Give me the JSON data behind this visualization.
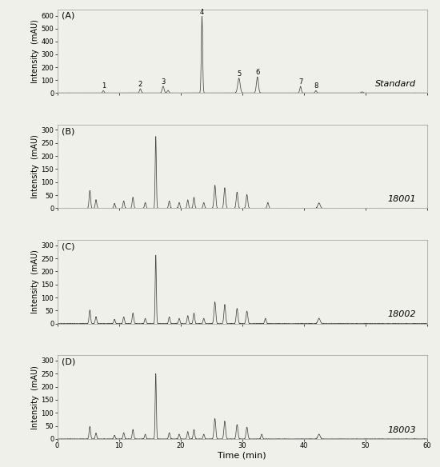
{
  "panels": [
    "(A)",
    "(B)",
    "(C)",
    "(D)"
  ],
  "labels": [
    "Standard",
    "18001",
    "18002",
    "18003"
  ],
  "xlim": [
    0,
    60
  ],
  "xticks": [
    0,
    10,
    20,
    30,
    40,
    50,
    60
  ],
  "xlabel": "Time (min)",
  "ylabel": "Intensity  (mAU)",
  "bg_color": "#f0f0eb",
  "line_color": "#444444",
  "title_fontsize": 8,
  "axis_fontsize": 7,
  "tick_fontsize": 6,
  "A_ylim": [
    0,
    650
  ],
  "A_yticks": [
    0,
    100,
    200,
    300,
    400,
    500,
    600
  ],
  "B_ylim": [
    0,
    320
  ],
  "B_yticks": [
    0,
    50,
    100,
    150,
    200,
    250,
    300
  ],
  "C_ylim": [
    0,
    320
  ],
  "C_yticks": [
    0,
    50,
    100,
    150,
    200,
    250,
    300
  ],
  "D_ylim": [
    0,
    320
  ],
  "D_yticks": [
    0,
    50,
    100,
    150,
    200,
    250,
    300
  ],
  "peak_positions_A": [
    7.5,
    13.5,
    17.2,
    18.0,
    23.5,
    29.5,
    32.5,
    39.5,
    42.0,
    49.5
  ],
  "peak_heights_A": [
    18,
    32,
    52,
    20,
    595,
    115,
    125,
    52,
    18,
    8
  ],
  "peak_widths_A": [
    0.25,
    0.3,
    0.35,
    0.3,
    0.25,
    0.45,
    0.38,
    0.28,
    0.28,
    0.35
  ],
  "peak_annot_A_pos": [
    7.5,
    13.5,
    17.2,
    23.5,
    29.5,
    32.5,
    39.5,
    42.0
  ],
  "peak_annot_A_h": [
    18,
    32,
    52,
    595,
    115,
    125,
    52,
    18
  ],
  "peak_annot_A_lbl": [
    "1",
    "2",
    "3",
    "4",
    "5",
    "6",
    "7",
    "8"
  ],
  "peak_positions_B": [
    5.3,
    6.3,
    9.3,
    10.8,
    12.3,
    14.3,
    16.0,
    18.2,
    19.8,
    21.2,
    22.2,
    23.8,
    25.6,
    27.2,
    29.2,
    30.8,
    34.2,
    42.5
  ],
  "peak_heights_B": [
    68,
    32,
    18,
    28,
    42,
    22,
    275,
    28,
    22,
    32,
    42,
    22,
    88,
    78,
    62,
    52,
    22,
    20
  ],
  "peak_widths_B": [
    0.28,
    0.28,
    0.28,
    0.28,
    0.28,
    0.28,
    0.22,
    0.28,
    0.28,
    0.28,
    0.28,
    0.28,
    0.32,
    0.32,
    0.32,
    0.32,
    0.28,
    0.45
  ],
  "peak_positions_C": [
    5.3,
    6.3,
    9.3,
    10.8,
    12.3,
    14.3,
    16.0,
    18.2,
    19.8,
    21.2,
    22.2,
    23.8,
    25.6,
    27.2,
    29.2,
    30.8,
    33.8,
    42.5
  ],
  "peak_heights_C": [
    52,
    26,
    16,
    26,
    40,
    20,
    262,
    26,
    20,
    30,
    40,
    20,
    83,
    73,
    58,
    48,
    20,
    20
  ],
  "peak_widths_C": [
    0.28,
    0.28,
    0.28,
    0.28,
    0.28,
    0.28,
    0.22,
    0.28,
    0.28,
    0.28,
    0.28,
    0.28,
    0.32,
    0.32,
    0.32,
    0.32,
    0.28,
    0.45
  ],
  "peak_positions_D": [
    5.3,
    6.3,
    9.3,
    10.8,
    12.3,
    14.3,
    16.0,
    18.2,
    19.8,
    21.2,
    22.2,
    23.8,
    25.6,
    27.2,
    29.2,
    30.8,
    33.2,
    42.5
  ],
  "peak_heights_D": [
    48,
    22,
    14,
    24,
    36,
    18,
    250,
    24,
    18,
    28,
    36,
    18,
    78,
    68,
    55,
    45,
    18,
    18
  ],
  "peak_widths_D": [
    0.28,
    0.28,
    0.28,
    0.28,
    0.28,
    0.28,
    0.22,
    0.28,
    0.28,
    0.28,
    0.28,
    0.28,
    0.32,
    0.32,
    0.32,
    0.32,
    0.28,
    0.45
  ]
}
